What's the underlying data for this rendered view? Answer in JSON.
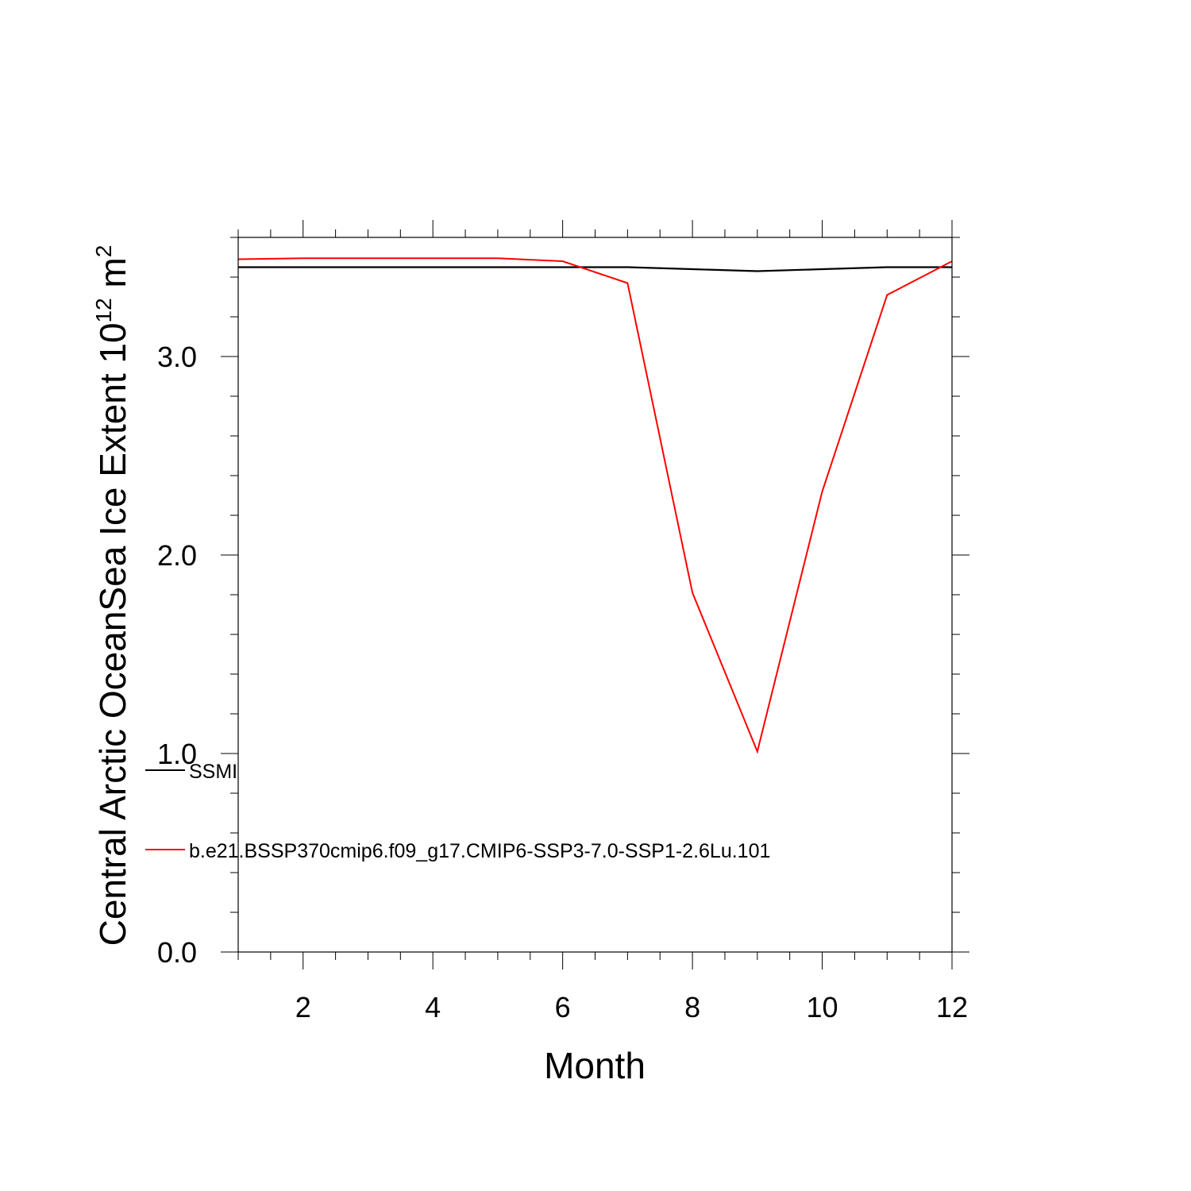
{
  "chart_data": {
    "type": "line",
    "xlabel": "Month",
    "ylabel": "Central Arctic OceanSea Ice Extent 10",
    "ylabel_exponent": "12",
    "ylabel_unit": " m",
    "ylabel_unit_exponent": "2",
    "xlim": [
      1,
      12
    ],
    "ylim": [
      0,
      3.6
    ],
    "x_ticks": [
      2,
      4,
      6,
      8,
      10,
      12
    ],
    "x_tick_labels": [
      "2",
      "4",
      "6",
      "8",
      "10",
      "12"
    ],
    "y_ticks": [
      0,
      1,
      2,
      3
    ],
    "y_tick_labels": [
      "0.0",
      "1.0",
      "2.0",
      "3.0"
    ],
    "grid": false,
    "legend_position": "lower-left",
    "x": [
      1,
      2,
      3,
      4,
      5,
      6,
      7,
      8,
      9,
      10,
      11,
      12
    ],
    "series": [
      {
        "name": "SSMI",
        "color": "#000000",
        "values": [
          3.45,
          3.45,
          3.45,
          3.45,
          3.45,
          3.45,
          3.45,
          3.44,
          3.43,
          3.44,
          3.45,
          3.45
        ]
      },
      {
        "name": "b.e21.BSSP370cmip6.f09_g17.CMIP6-SSP3-7.0-SSP1-2.6Lu.101",
        "color": "#ff0000",
        "values": [
          3.49,
          3.495,
          3.495,
          3.495,
          3.495,
          3.48,
          3.37,
          1.81,
          1.01,
          2.32,
          3.31,
          3.48
        ]
      }
    ]
  }
}
